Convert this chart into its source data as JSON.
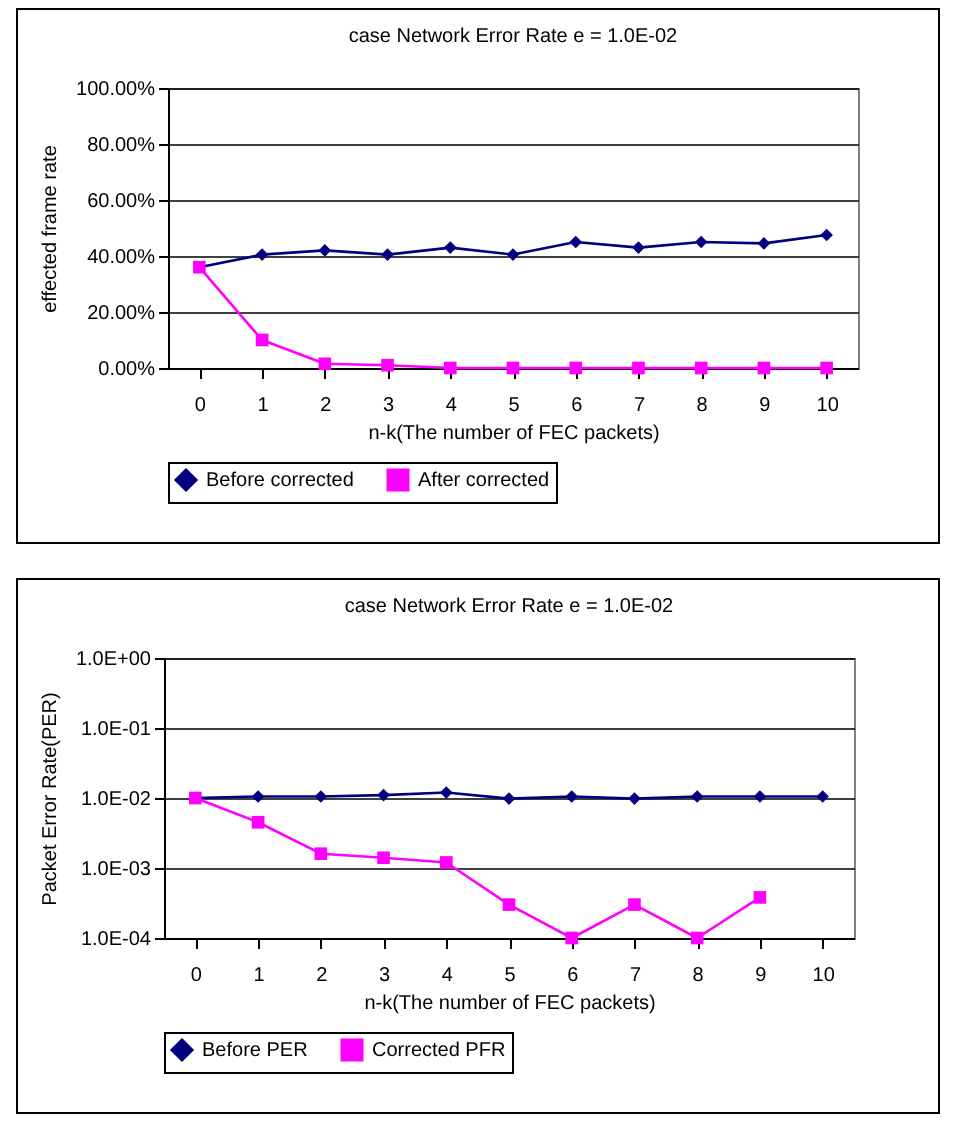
{
  "chart_data": [
    {
      "type": "line",
      "title": "case Network Error Rate e = 1.0E-02",
      "xlabel": "n-k(The number of FEC packets)",
      "ylabel": "effected frame rate",
      "categories": [
        "0",
        "1",
        "2",
        "3",
        "4",
        "5",
        "6",
        "7",
        "8",
        "9",
        "10"
      ],
      "series": [
        {
          "name": "Before corrected",
          "color": "#000080",
          "marker": "diamond",
          "values": [
            36,
            40.5,
            42,
            40.5,
            43,
            40.5,
            45,
            43,
            45,
            44.5,
            47.5
          ]
        },
        {
          "name": "After corrected",
          "color": "#ff00ff",
          "marker": "square",
          "values": [
            36,
            10,
            1.5,
            1,
            0,
            0,
            0,
            0,
            0,
            0,
            0
          ]
        }
      ],
      "ylim": [
        0,
        100
      ],
      "yticks": [
        {
          "value": 0,
          "label": "0.00%"
        },
        {
          "value": 20,
          "label": "20.00%"
        },
        {
          "value": 40,
          "label": "40.00%"
        },
        {
          "value": 60,
          "label": "60.00%"
        },
        {
          "value": 80,
          "label": "80.00%"
        },
        {
          "value": 100,
          "label": "100.00%"
        }
      ],
      "grid": "y",
      "legend": "bottom"
    },
    {
      "type": "line",
      "title": "case Network Error Rate e = 1.0E-02",
      "xlabel": "n-k(The number of FEC packets)",
      "ylabel": "Packet Error Rate(PER)",
      "categories": [
        "0",
        "1",
        "2",
        "3",
        "4",
        "5",
        "6",
        "7",
        "8",
        "9",
        "10"
      ],
      "series": [
        {
          "name": "Before PER",
          "color": "#000080",
          "marker": "diamond",
          "values": [
            0.01,
            0.0105,
            0.0105,
            0.011,
            0.012,
            0.0098,
            0.0105,
            0.0098,
            0.0105,
            0.0105,
            0.0105
          ]
        },
        {
          "name": "Corrected PFR",
          "color": "#ff00ff",
          "marker": "square",
          "values": [
            0.01,
            0.0045,
            0.0016,
            0.0014,
            0.0012,
            0.0003,
            0.0001,
            0.0003,
            0.0001,
            0.00038,
            null
          ]
        }
      ],
      "log": "y",
      "ylim": [
        0.0001,
        1
      ],
      "yticks": [
        {
          "value": 0.0001,
          "label": "1.0E-04"
        },
        {
          "value": 0.001,
          "label": "1.0E-03"
        },
        {
          "value": 0.01,
          "label": "1.0E-02"
        },
        {
          "value": 0.1,
          "label": "1.0E-01"
        },
        {
          "value": 1,
          "label": "1.0E+00"
        }
      ],
      "grid": "y",
      "legend": "bottom"
    }
  ]
}
